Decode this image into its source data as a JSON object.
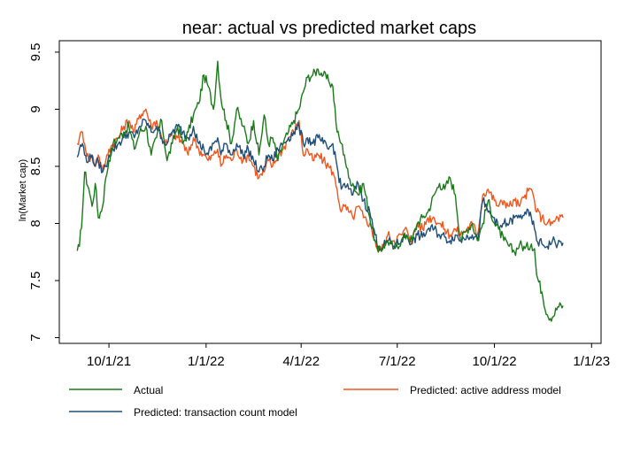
{
  "chart_data": {
    "type": "line",
    "title": "near: actual vs predicted market caps",
    "xlabel": "",
    "ylabel": "ln(Market cap)",
    "x_ticks": [
      "10/1/21",
      "1/1/22",
      "4/1/22",
      "7/1/22",
      "10/1/22",
      "1/1/23"
    ],
    "y_ticks": [
      "7",
      "7.5",
      "8",
      "8.5",
      "9",
      "9.5"
    ],
    "xlim": [
      "2021-08-15",
      "2023-01-10"
    ],
    "ylim": [
      6.95,
      9.6
    ],
    "grid": false,
    "legend_position": "bottom",
    "legend": [
      "Actual",
      "Predicted: active address model",
      "Predicted: transaction count model"
    ],
    "colors": [
      "#1a7a1a",
      "#f2561d",
      "#1f4e79"
    ],
    "series": [
      {
        "name": "Actual",
        "x": [
          "2021-09-01",
          "2021-09-03",
          "2021-09-06",
          "2021-09-08",
          "2021-09-12",
          "2021-09-15",
          "2021-09-18",
          "2021-09-21",
          "2021-09-25",
          "2021-09-28",
          "2021-10-01",
          "2021-10-05",
          "2021-10-10",
          "2021-10-15",
          "2021-10-20",
          "2021-10-25",
          "2021-10-30",
          "2021-11-05",
          "2021-11-10",
          "2021-11-15",
          "2021-11-20",
          "2021-11-25",
          "2021-11-30",
          "2021-12-05",
          "2021-12-10",
          "2021-12-15",
          "2021-12-20",
          "2021-12-25",
          "2021-12-30",
          "2022-01-03",
          "2022-01-08",
          "2022-01-12",
          "2022-01-15",
          "2022-01-20",
          "2022-01-25",
          "2022-01-30",
          "2022-02-05",
          "2022-02-10",
          "2022-02-15",
          "2022-02-20",
          "2022-02-25",
          "2022-03-01",
          "2022-03-05",
          "2022-03-10",
          "2022-03-15",
          "2022-03-20",
          "2022-03-25",
          "2022-03-30",
          "2022-04-03",
          "2022-04-07",
          "2022-04-12",
          "2022-04-17",
          "2022-04-22",
          "2022-04-27",
          "2022-05-01",
          "2022-05-05",
          "2022-05-09",
          "2022-05-12",
          "2022-05-16",
          "2022-05-20",
          "2022-05-25",
          "2022-05-30",
          "2022-06-05",
          "2022-06-10",
          "2022-06-13",
          "2022-06-18",
          "2022-06-22",
          "2022-06-28",
          "2022-07-05",
          "2022-07-10",
          "2022-07-15",
          "2022-07-20",
          "2022-07-25",
          "2022-07-30",
          "2022-08-05",
          "2022-08-10",
          "2022-08-15",
          "2022-08-20",
          "2022-08-25",
          "2022-08-30",
          "2022-09-05",
          "2022-09-10",
          "2022-09-15",
          "2022-09-20",
          "2022-09-25",
          "2022-10-01",
          "2022-10-05",
          "2022-10-10",
          "2022-10-15",
          "2022-10-20",
          "2022-10-25",
          "2022-10-30",
          "2022-11-05",
          "2022-11-08",
          "2022-11-10",
          "2022-11-15",
          "2022-11-20",
          "2022-11-25",
          "2022-11-30",
          "2022-12-05"
        ],
        "values": [
          7.76,
          7.8,
          8.1,
          8.45,
          8.3,
          8.15,
          8.35,
          8.05,
          8.15,
          8.4,
          8.55,
          8.7,
          8.75,
          8.8,
          8.85,
          8.65,
          8.8,
          8.85,
          8.6,
          8.75,
          8.9,
          8.55,
          8.7,
          8.85,
          8.7,
          8.8,
          8.95,
          9.05,
          9.3,
          9.2,
          9.0,
          9.42,
          9.1,
          8.9,
          8.7,
          9.0,
          8.85,
          8.7,
          8.9,
          8.6,
          8.95,
          8.7,
          8.75,
          8.55,
          8.7,
          8.8,
          8.9,
          9.0,
          9.15,
          9.28,
          9.3,
          9.35,
          9.3,
          9.25,
          9.2,
          8.8,
          8.7,
          8.6,
          8.4,
          8.35,
          8.25,
          8.35,
          8.05,
          7.85,
          7.75,
          7.8,
          7.85,
          7.78,
          7.85,
          7.9,
          7.85,
          8.0,
          8.05,
          8.1,
          8.25,
          8.35,
          8.3,
          8.4,
          8.25,
          7.85,
          7.95,
          8.0,
          7.85,
          8.0,
          8.2,
          8.0,
          7.95,
          7.85,
          7.8,
          7.75,
          7.82,
          7.78,
          7.82,
          7.78,
          7.55,
          7.4,
          7.2,
          7.18,
          7.27,
          7.28
        ]
      },
      {
        "name": "Predicted: active address model",
        "x": [
          "2021-09-01",
          "2021-09-03",
          "2021-09-06",
          "2021-09-08",
          "2021-09-12",
          "2021-09-15",
          "2021-09-18",
          "2021-09-21",
          "2021-09-25",
          "2021-09-28",
          "2021-10-01",
          "2021-10-05",
          "2021-10-10",
          "2021-10-15",
          "2021-10-20",
          "2021-10-25",
          "2021-10-30",
          "2021-11-05",
          "2021-11-10",
          "2021-11-15",
          "2021-11-20",
          "2021-11-25",
          "2021-11-30",
          "2021-12-05",
          "2021-12-10",
          "2021-12-15",
          "2021-12-20",
          "2021-12-25",
          "2021-12-30",
          "2022-01-03",
          "2022-01-08",
          "2022-01-12",
          "2022-01-15",
          "2022-01-20",
          "2022-01-25",
          "2022-01-30",
          "2022-02-05",
          "2022-02-10",
          "2022-02-15",
          "2022-02-20",
          "2022-02-25",
          "2022-03-01",
          "2022-03-05",
          "2022-03-10",
          "2022-03-15",
          "2022-03-20",
          "2022-03-25",
          "2022-03-30",
          "2022-04-03",
          "2022-04-07",
          "2022-04-12",
          "2022-04-17",
          "2022-04-22",
          "2022-04-27",
          "2022-05-01",
          "2022-05-05",
          "2022-05-09",
          "2022-05-12",
          "2022-05-16",
          "2022-05-20",
          "2022-05-25",
          "2022-05-30",
          "2022-06-05",
          "2022-06-10",
          "2022-06-13",
          "2022-06-18",
          "2022-06-22",
          "2022-06-28",
          "2022-07-05",
          "2022-07-10",
          "2022-07-15",
          "2022-07-20",
          "2022-07-25",
          "2022-07-30",
          "2022-08-05",
          "2022-08-10",
          "2022-08-15",
          "2022-08-20",
          "2022-08-25",
          "2022-08-30",
          "2022-09-05",
          "2022-09-10",
          "2022-09-15",
          "2022-09-20",
          "2022-09-25",
          "2022-10-01",
          "2022-10-05",
          "2022-10-10",
          "2022-10-15",
          "2022-10-20",
          "2022-10-25",
          "2022-10-30",
          "2022-11-05",
          "2022-11-08",
          "2022-11-10",
          "2022-11-15",
          "2022-11-20",
          "2022-11-25",
          "2022-11-30",
          "2022-12-05"
        ],
        "values": [
          8.7,
          8.75,
          8.8,
          8.7,
          8.55,
          8.6,
          8.5,
          8.6,
          8.45,
          8.55,
          8.65,
          8.7,
          8.75,
          8.85,
          8.9,
          8.8,
          8.95,
          9.0,
          8.85,
          8.9,
          8.75,
          8.7,
          8.8,
          8.75,
          8.7,
          8.6,
          8.75,
          8.65,
          8.6,
          8.55,
          8.6,
          8.65,
          8.5,
          8.6,
          8.55,
          8.65,
          8.55,
          8.6,
          8.5,
          8.4,
          8.45,
          8.55,
          8.5,
          8.6,
          8.65,
          8.75,
          8.8,
          8.9,
          8.6,
          8.65,
          8.55,
          8.6,
          8.55,
          8.5,
          8.45,
          8.3,
          8.1,
          8.15,
          8.1,
          8.05,
          8.15,
          8.05,
          8.0,
          7.85,
          7.75,
          7.8,
          7.9,
          7.85,
          7.9,
          7.95,
          7.85,
          8.0,
          7.95,
          8.05,
          8.05,
          8.0,
          7.95,
          7.9,
          7.95,
          7.9,
          7.95,
          8.0,
          7.9,
          8.25,
          8.3,
          8.2,
          8.15,
          8.2,
          8.15,
          8.2,
          8.15,
          8.25,
          8.3,
          8.2,
          8.1,
          8.05,
          8.0,
          8.0,
          8.05,
          8.05
        ]
      },
      {
        "name": "Predicted: transaction count model",
        "x": [
          "2021-09-01",
          "2021-09-03",
          "2021-09-06",
          "2021-09-08",
          "2021-09-12",
          "2021-09-15",
          "2021-09-18",
          "2021-09-21",
          "2021-09-25",
          "2021-09-28",
          "2021-10-01",
          "2021-10-05",
          "2021-10-10",
          "2021-10-15",
          "2021-10-20",
          "2021-10-25",
          "2021-10-30",
          "2021-11-05",
          "2021-11-10",
          "2021-11-15",
          "2021-11-20",
          "2021-11-25",
          "2021-11-30",
          "2021-12-05",
          "2021-12-10",
          "2021-12-15",
          "2021-12-20",
          "2021-12-25",
          "2021-12-30",
          "2022-01-03",
          "2022-01-08",
          "2022-01-12",
          "2022-01-15",
          "2022-01-20",
          "2022-01-25",
          "2022-01-30",
          "2022-02-05",
          "2022-02-10",
          "2022-02-15",
          "2022-02-20",
          "2022-02-25",
          "2022-03-01",
          "2022-03-05",
          "2022-03-10",
          "2022-03-15",
          "2022-03-20",
          "2022-03-25",
          "2022-03-30",
          "2022-04-03",
          "2022-04-07",
          "2022-04-12",
          "2022-04-17",
          "2022-04-22",
          "2022-04-27",
          "2022-05-01",
          "2022-05-05",
          "2022-05-09",
          "2022-05-12",
          "2022-05-16",
          "2022-05-20",
          "2022-05-25",
          "2022-05-30",
          "2022-06-05",
          "2022-06-10",
          "2022-06-13",
          "2022-06-18",
          "2022-06-22",
          "2022-06-28",
          "2022-07-05",
          "2022-07-10",
          "2022-07-15",
          "2022-07-20",
          "2022-07-25",
          "2022-07-30",
          "2022-08-05",
          "2022-08-10",
          "2022-08-15",
          "2022-08-20",
          "2022-08-25",
          "2022-08-30",
          "2022-09-05",
          "2022-09-10",
          "2022-09-15",
          "2022-09-20",
          "2022-09-25",
          "2022-10-01",
          "2022-10-05",
          "2022-10-10",
          "2022-10-15",
          "2022-10-20",
          "2022-10-25",
          "2022-10-30",
          "2022-11-05",
          "2022-11-08",
          "2022-11-10",
          "2022-11-15",
          "2022-11-20",
          "2022-11-25",
          "2022-11-30",
          "2022-12-05"
        ],
        "values": [
          8.58,
          8.65,
          8.7,
          8.6,
          8.55,
          8.6,
          8.5,
          8.55,
          8.45,
          8.5,
          8.6,
          8.65,
          8.7,
          8.75,
          8.8,
          8.75,
          8.85,
          8.9,
          8.8,
          8.85,
          8.75,
          8.7,
          8.8,
          8.85,
          8.8,
          8.75,
          8.85,
          8.7,
          8.65,
          8.6,
          8.7,
          8.75,
          8.6,
          8.7,
          8.6,
          8.7,
          8.6,
          8.65,
          8.55,
          8.45,
          8.5,
          8.6,
          8.55,
          8.65,
          8.7,
          8.75,
          8.8,
          8.85,
          8.7,
          8.75,
          8.7,
          8.75,
          8.7,
          8.65,
          8.7,
          8.5,
          8.3,
          8.35,
          8.3,
          8.25,
          8.35,
          8.2,
          8.1,
          7.9,
          7.8,
          7.8,
          7.85,
          7.8,
          7.85,
          7.9,
          7.82,
          7.9,
          7.88,
          7.95,
          7.95,
          7.9,
          7.88,
          7.85,
          7.9,
          7.85,
          7.9,
          7.9,
          7.85,
          8.2,
          8.1,
          8.05,
          7.95,
          8.0,
          8.0,
          8.05,
          8.05,
          8.1,
          8.05,
          7.95,
          7.85,
          7.82,
          7.8,
          7.85,
          7.82,
          7.83
        ]
      }
    ]
  }
}
